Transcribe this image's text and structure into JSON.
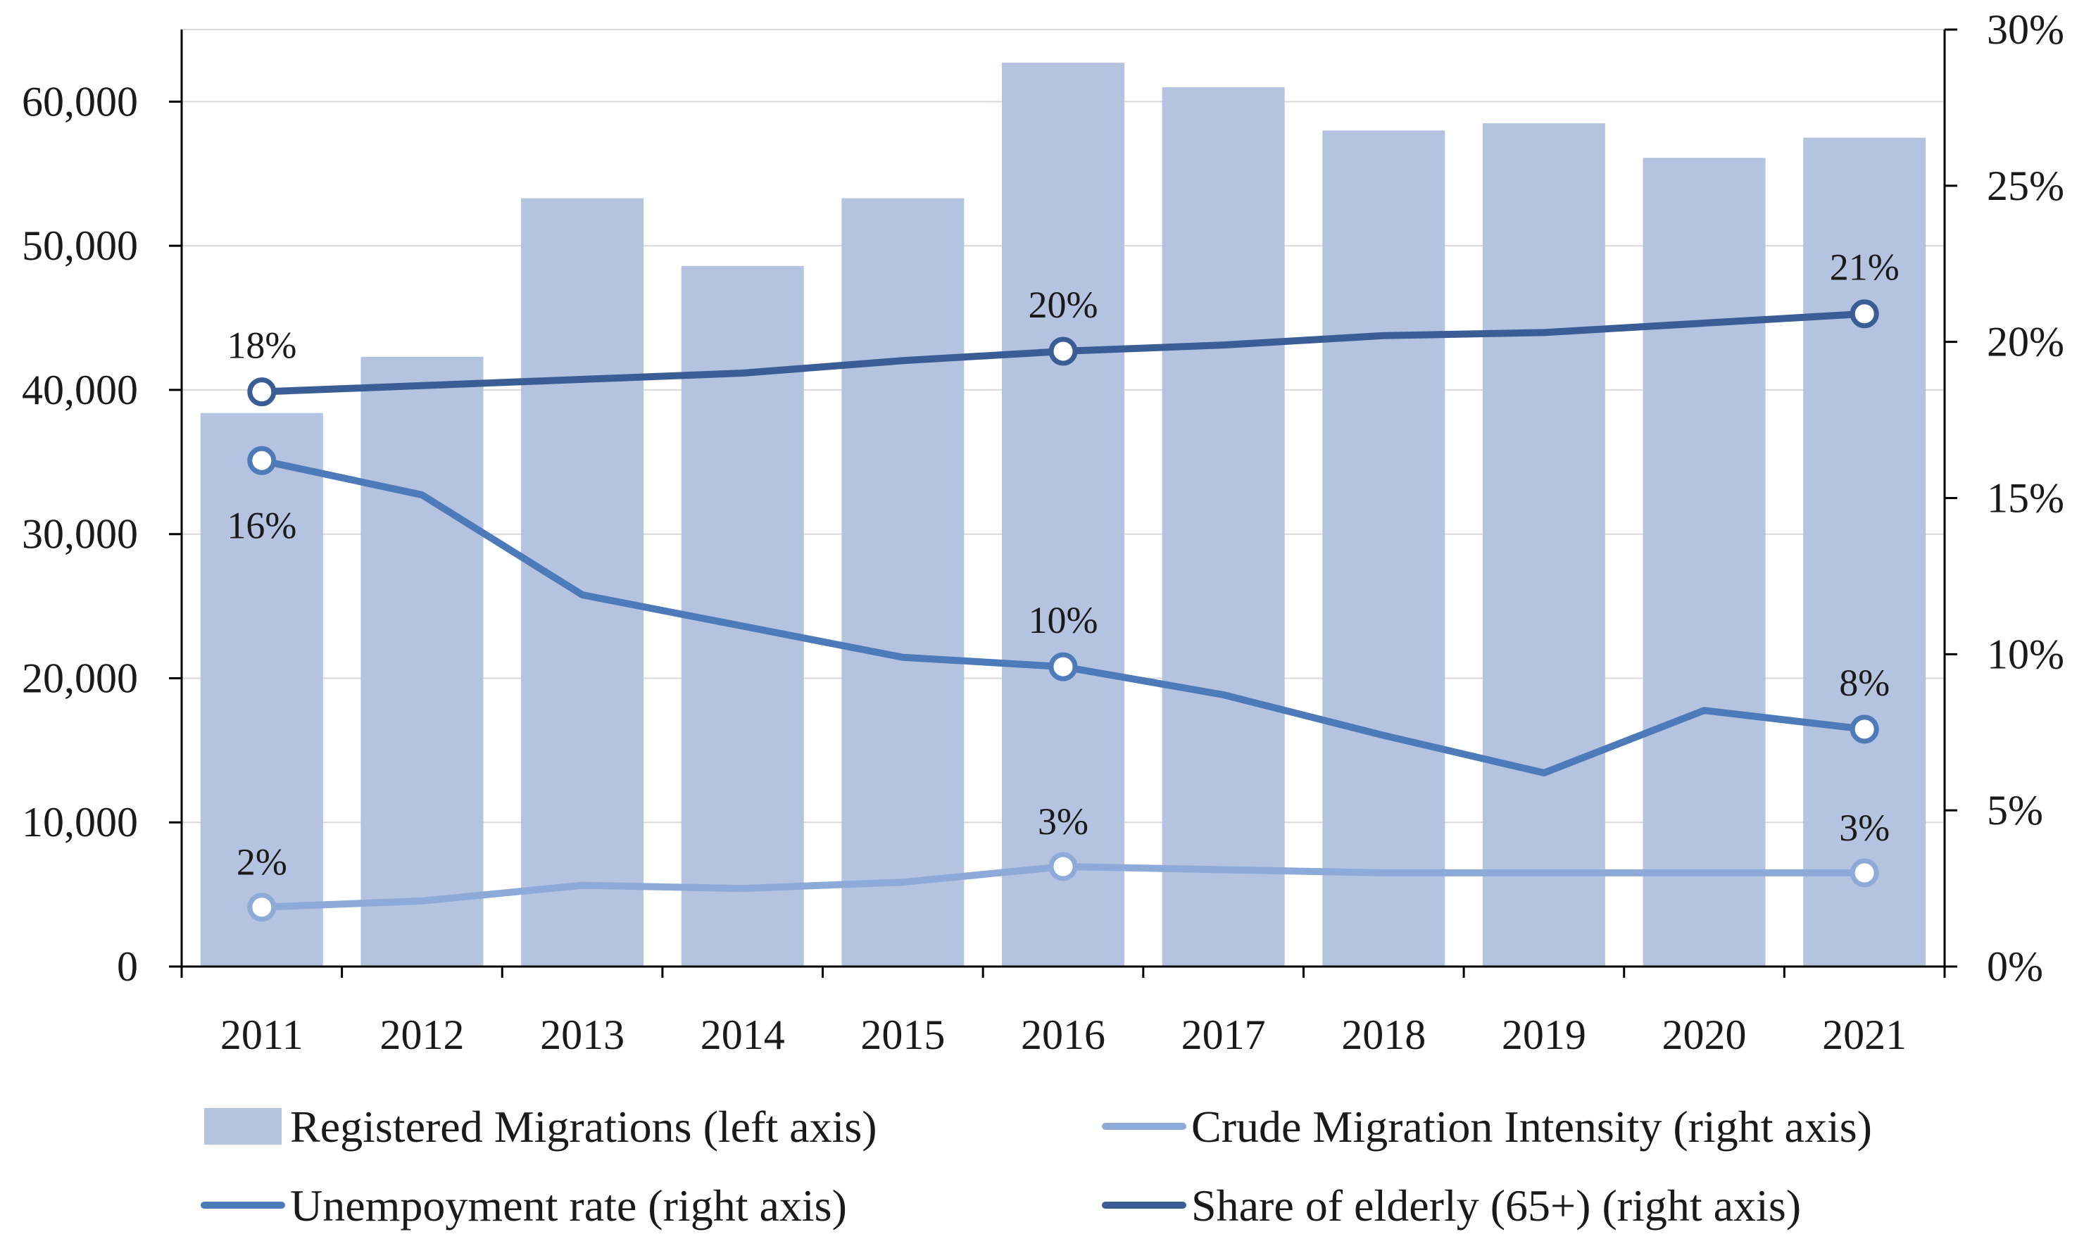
{
  "chart_data": {
    "type": "bar+line",
    "categories": [
      "2011",
      "2012",
      "2013",
      "2014",
      "2015",
      "2016",
      "2017",
      "2018",
      "2019",
      "2020",
      "2021"
    ],
    "left_axis": {
      "ylim": [
        0,
        65000
      ],
      "ticks": [
        0,
        10000,
        20000,
        30000,
        40000,
        50000,
        60000
      ],
      "tick_labels": [
        "0",
        "10,000",
        "20,000",
        "30,000",
        "40,000",
        "50,000",
        "60,000"
      ]
    },
    "right_axis": {
      "ylim": [
        0,
        30
      ],
      "ticks": [
        0,
        5,
        10,
        15,
        20,
        25,
        30
      ],
      "tick_labels": [
        "0%",
        "5%",
        "10%",
        "15%",
        "20%",
        "25%",
        "30%"
      ]
    },
    "grid": true,
    "legend_position": "bottom",
    "series": [
      {
        "name": "Registered Migrations (left axis)",
        "type": "bar",
        "axis": "left",
        "color": "#b4c3df",
        "values": [
          38400,
          42300,
          53300,
          48600,
          53300,
          62700,
          61000,
          58000,
          58500,
          56100,
          57500
        ]
      },
      {
        "name": "Crude Migration Intensity (right axis)",
        "type": "line",
        "axis": "right",
        "color": "#8eaad8",
        "values": [
          1.9,
          2.1,
          2.6,
          2.5,
          2.7,
          3.2,
          3.1,
          3.0,
          3.0,
          3.0,
          3.0
        ],
        "data_labels": [
          {
            "index": 0,
            "text": "2%"
          },
          {
            "index": 5,
            "text": "3%"
          },
          {
            "index": 10,
            "text": "3%"
          }
        ]
      },
      {
        "name": "Unempoyment rate (right axis)",
        "type": "line",
        "axis": "right",
        "color": "#4d7ab9",
        "values": [
          16.2,
          15.1,
          11.9,
          10.9,
          9.9,
          9.6,
          8.7,
          7.4,
          6.2,
          8.2,
          7.6
        ],
        "data_labels": [
          {
            "index": 0,
            "text": "16%"
          },
          {
            "index": 5,
            "text": "10%"
          },
          {
            "index": 10,
            "text": "8%"
          }
        ]
      },
      {
        "name": "Share of elderly (65+) (right axis)",
        "type": "line",
        "axis": "right",
        "color": "#3b5d96",
        "values": [
          18.4,
          18.6,
          18.8,
          19.0,
          19.4,
          19.7,
          19.9,
          20.2,
          20.3,
          20.6,
          20.9
        ],
        "data_labels": [
          {
            "index": 0,
            "text": "18%"
          },
          {
            "index": 5,
            "text": "20%"
          },
          {
            "index": 10,
            "text": "21%"
          }
        ]
      }
    ]
  }
}
